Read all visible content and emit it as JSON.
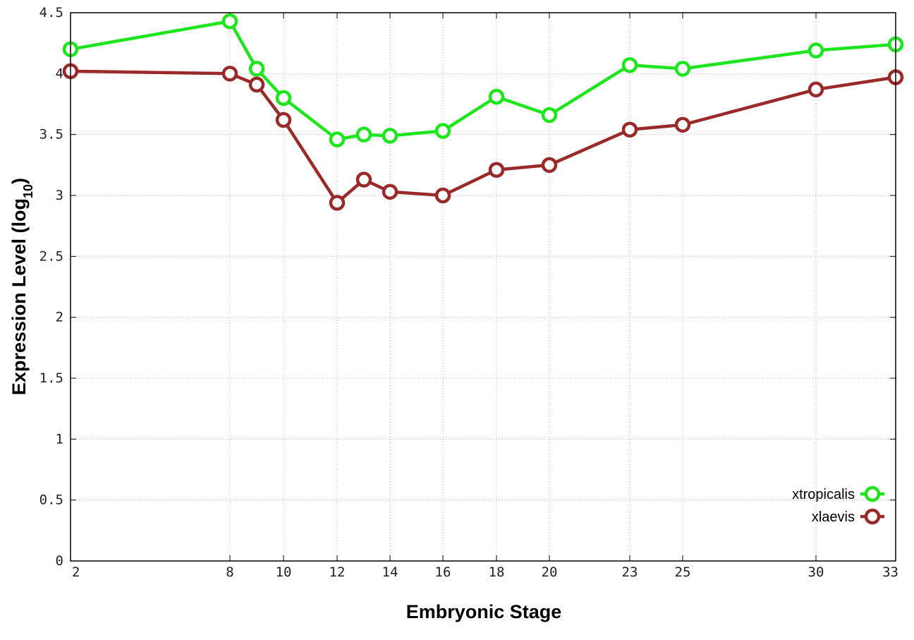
{
  "chart_data": {
    "type": "line",
    "xlabel": "Embryonic Stage",
    "ylabel": {
      "text": "Expression Level (log",
      "subscript": "10",
      "suffix": ")"
    },
    "x_ticks": [
      2,
      8,
      10,
      12,
      14,
      16,
      18,
      20,
      23,
      25,
      30,
      33
    ],
    "y_ticks": [
      "0",
      "0.5",
      "1",
      "1.5",
      "2",
      "2.5",
      "3",
      "3.5",
      "4",
      "4.5"
    ],
    "xlim": [
      2,
      33
    ],
    "ylim": [
      0,
      4.5
    ],
    "x_scale": "piecewise-linear",
    "grid": true,
    "legend_position": "bottom-right",
    "marker": "open-circle",
    "x": [
      2,
      8,
      9,
      10,
      12,
      13,
      14,
      16,
      18,
      20,
      23,
      25,
      30,
      33
    ],
    "series": [
      {
        "name": "xtropicalis",
        "color": "#1ee61e",
        "values": [
          4.2,
          4.43,
          4.04,
          3.8,
          3.46,
          3.5,
          3.49,
          3.53,
          3.81,
          3.66,
          4.07,
          4.04,
          4.19,
          4.24
        ]
      },
      {
        "name": "xlaevis",
        "color": "#9a2a2a",
        "values": [
          4.02,
          4.0,
          3.91,
          3.62,
          2.94,
          3.13,
          3.03,
          3.0,
          3.21,
          3.25,
          3.54,
          3.58,
          3.87,
          3.97
        ]
      }
    ]
  }
}
